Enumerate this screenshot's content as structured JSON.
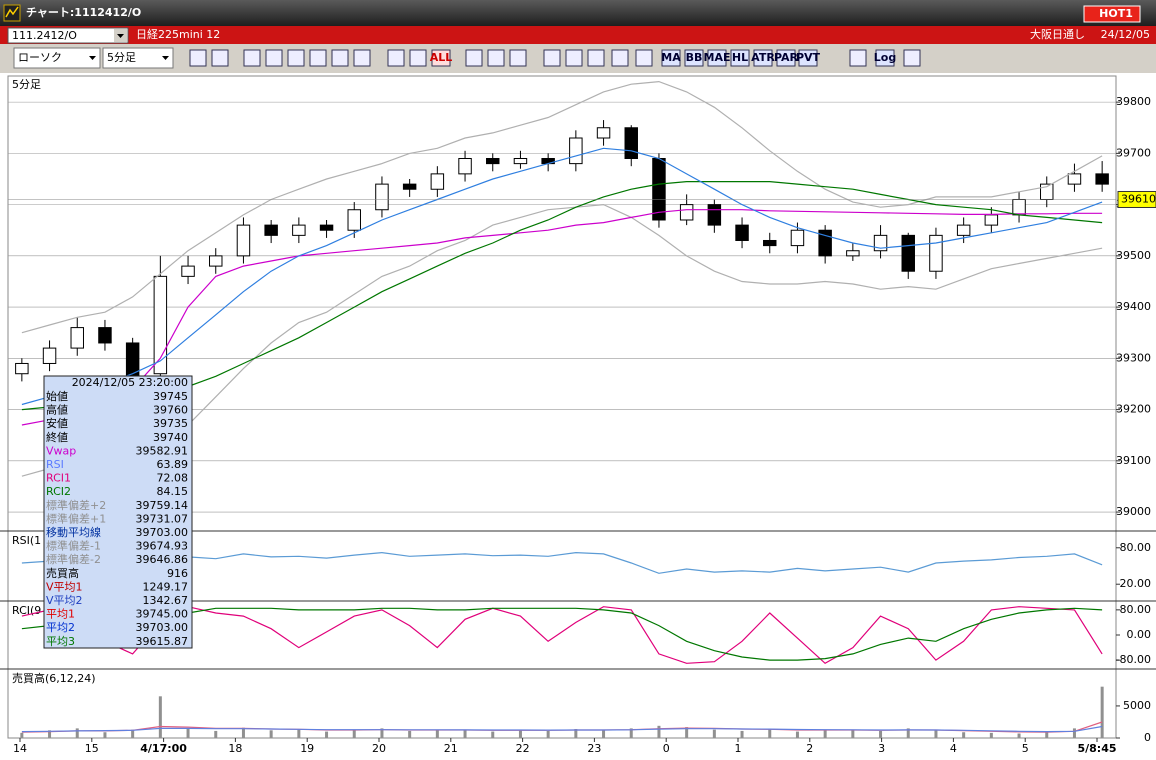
{
  "window": {
    "title": "チャート:1112412/O",
    "hot": "HOT1"
  },
  "header": {
    "code": "111.2412/O",
    "name": "日経225mini 12",
    "market": "大阪日通し",
    "date": "24/12/05"
  },
  "toolbar": {
    "chart_type": "ローソク",
    "interval": "5分足",
    "labels": [
      "ALL",
      "MA",
      "BB",
      "MAE",
      "HL",
      "ATR",
      "PAR",
      "PVT",
      "Log"
    ]
  },
  "time_axis": {
    "labels": [
      "14",
      "15",
      "4/17:00",
      "18",
      "19",
      "20",
      "21",
      "22",
      "23",
      "0",
      "1",
      "2",
      "3",
      "4",
      "5",
      "5/8:45"
    ]
  },
  "chart_data": [
    {
      "type": "candlestick",
      "title": "5分足",
      "ylim": [
        38965,
        39851
      ],
      "yticks": [
        39000,
        39100,
        39200,
        39300,
        39400,
        39500,
        39600,
        39700,
        39800
      ],
      "grid": true,
      "last": 39610,
      "open": [
        39270,
        39290,
        39320,
        39360,
        39330,
        39270,
        39460,
        39480,
        39500,
        39560,
        39540,
        39560,
        39550,
        39590,
        39640,
        39630,
        39660,
        39690,
        39680,
        39690,
        39680,
        39730,
        39750,
        39690,
        39570,
        39600,
        39560,
        39530,
        39520,
        39550,
        39500,
        39510,
        39540,
        39470,
        39540,
        39560,
        39580,
        39610,
        39640,
        39660
      ],
      "high": [
        39300,
        39335,
        39380,
        39375,
        39340,
        39500,
        39500,
        39515,
        39575,
        39570,
        39575,
        39570,
        39605,
        39655,
        39650,
        39675,
        39705,
        39700,
        39705,
        39700,
        39745,
        39765,
        39755,
        39700,
        39620,
        39610,
        39575,
        39545,
        39565,
        39560,
        39525,
        39560,
        39545,
        39555,
        39575,
        39595,
        39625,
        39655,
        39680,
        39685
      ],
      "low": [
        39255,
        39275,
        39305,
        39315,
        39245,
        39255,
        39445,
        39465,
        39485,
        39525,
        39525,
        39535,
        39535,
        39575,
        39615,
        39615,
        39645,
        39665,
        39670,
        39665,
        39665,
        39715,
        39675,
        39555,
        39560,
        39545,
        39515,
        39505,
        39505,
        39485,
        39490,
        39495,
        39455,
        39455,
        39525,
        39545,
        39565,
        39595,
        39625,
        39625
      ],
      "close": [
        39290,
        39320,
        39360,
        39330,
        39260,
        39460,
        39480,
        39500,
        39560,
        39540,
        39560,
        39550,
        39590,
        39640,
        39630,
        39660,
        39690,
        39680,
        39690,
        39680,
        39730,
        39750,
        39690,
        39570,
        39600,
        39560,
        39530,
        39520,
        39550,
        39500,
        39510,
        39540,
        39470,
        39540,
        39560,
        39580,
        39610,
        39640,
        39660,
        39640
      ],
      "series": [
        {
          "color": "#b0b0b0",
          "values": [
            39350,
            39365,
            39380,
            39390,
            39420,
            39465,
            39510,
            39545,
            39580,
            39610,
            39630,
            39650,
            39665,
            39680,
            39700,
            39710,
            39730,
            39740,
            39755,
            39770,
            39795,
            39820,
            39835,
            39840,
            39820,
            39790,
            39750,
            39705,
            39665,
            39630,
            39605,
            39595,
            39600,
            39615,
            39615,
            39615,
            39625,
            39635,
            39665,
            39695
          ]
        },
        {
          "color": "#b0b0b0",
          "values": [
            39070,
            39085,
            39100,
            39110,
            39120,
            39125,
            39170,
            39225,
            39280,
            39330,
            39370,
            39390,
            39425,
            39460,
            39480,
            39510,
            39530,
            39560,
            39575,
            39590,
            39595,
            39600,
            39575,
            39540,
            39500,
            39470,
            39450,
            39445,
            39445,
            39450,
            39445,
            39435,
            39440,
            39435,
            39455,
            39475,
            39485,
            39495,
            39505,
            39515
          ]
        },
        {
          "color": "#cc00cc",
          "values": [
            39170,
            39180,
            39195,
            39210,
            39240,
            39300,
            39400,
            39460,
            39480,
            39490,
            39500,
            39505,
            39510,
            39515,
            39520,
            39525,
            39535,
            39540,
            39545,
            39550,
            39560,
            39565,
            39575,
            39585,
            39590,
            39590,
            39590,
            39588,
            39587,
            39586,
            39585,
            39584,
            39583,
            39582,
            39581,
            39581,
            39582,
            39582,
            39583,
            39583
          ]
        },
        {
          "color": "#007700",
          "values": [
            39200,
            39205,
            39210,
            39215,
            39220,
            39230,
            39245,
            39265,
            39290,
            39315,
            39340,
            39370,
            39400,
            39430,
            39455,
            39480,
            39505,
            39525,
            39550,
            39570,
            39595,
            39615,
            39630,
            39640,
            39645,
            39645,
            39645,
            39645,
            39640,
            39635,
            39630,
            39620,
            39610,
            39600,
            39595,
            39590,
            39580,
            39575,
            39570,
            39565
          ]
        },
        {
          "color": "#2f7fe0",
          "values": [
            39210,
            39225,
            39240,
            39250,
            39270,
            39295,
            39340,
            39385,
            39430,
            39470,
            39500,
            39520,
            39545,
            39570,
            39590,
            39610,
            39630,
            39650,
            39665,
            39680,
            39695,
            39710,
            39705,
            39690,
            39660,
            39630,
            39600,
            39575,
            39555,
            39540,
            39525,
            39515,
            39520,
            39525,
            39535,
            39545,
            39555,
            39565,
            39585,
            39605
          ]
        }
      ]
    },
    {
      "type": "line",
      "title": "RSI(1",
      "ylim": [
        -6,
        106
      ],
      "yticks": [
        {
          "value": 80,
          "label": "80.00"
        },
        {
          "value": 20,
          "label": "20.00"
        }
      ],
      "grid": false,
      "series": [
        {
          "color": "#5b9bd5",
          "values": [
            55,
            58,
            62,
            60,
            50,
            68,
            65,
            62,
            70,
            65,
            66,
            63,
            68,
            72,
            66,
            68,
            70,
            67,
            68,
            66,
            72,
            70,
            55,
            38,
            45,
            40,
            42,
            40,
            46,
            42,
            45,
            48,
            40,
            55,
            58,
            60,
            64,
            66,
            70,
            52
          ]
        }
      ]
    },
    {
      "type": "line",
      "title": "RCI(9",
      "ylim": [
        -105,
        105
      ],
      "yticks": [
        {
          "value": 80,
          "label": "80.00"
        },
        {
          "value": 0,
          "label": "0.00"
        },
        {
          "value": -80,
          "label": "-80.00"
        }
      ],
      "grid": false,
      "series": [
        {
          "color": "#e0007a",
          "values": [
            60,
            80,
            40,
            -20,
            -60,
            40,
            90,
            70,
            60,
            20,
            -40,
            10,
            60,
            80,
            30,
            -40,
            50,
            85,
            60,
            -20,
            40,
            90,
            80,
            -60,
            -90,
            -85,
            -20,
            70,
            -10,
            -90,
            -40,
            60,
            20,
            -80,
            -20,
            80,
            90,
            85,
            80,
            -60
          ]
        },
        {
          "color": "#007700",
          "values": [
            20,
            30,
            40,
            35,
            30,
            50,
            70,
            85,
            85,
            85,
            80,
            80,
            80,
            85,
            85,
            80,
            80,
            85,
            85,
            85,
            85,
            80,
            70,
            30,
            -20,
            -50,
            -70,
            -80,
            -80,
            -75,
            -60,
            -30,
            -10,
            -20,
            20,
            50,
            70,
            80,
            85,
            80
          ]
        }
      ]
    },
    {
      "type": "bar",
      "title": "売買高(6,12,24)",
      "ylim": [
        0,
        10600
      ],
      "yticks": [
        0,
        5000
      ],
      "grid": false,
      "color": "#909090",
      "values": [
        800,
        1200,
        1500,
        900,
        1300,
        6500,
        1400,
        1100,
        1600,
        1200,
        1300,
        1000,
        1200,
        1500,
        1100,
        1300,
        1200,
        1000,
        1300,
        1100,
        1400,
        1200,
        1500,
        1900,
        1700,
        1300,
        1100,
        1400,
        1000,
        1200,
        1300,
        1100,
        1500,
        1200,
        900,
        800,
        700,
        1000,
        1500,
        8000
      ],
      "series": [
        {
          "color": "#e06080",
          "values": [
            900,
            1000,
            1100,
            1100,
            1200,
            1800,
            1700,
            1500,
            1500,
            1400,
            1350,
            1250,
            1250,
            1300,
            1250,
            1250,
            1250,
            1200,
            1200,
            1200,
            1250,
            1250,
            1300,
            1450,
            1550,
            1500,
            1400,
            1350,
            1250,
            1250,
            1250,
            1200,
            1250,
            1250,
            1150,
            1050,
            950,
            900,
            1050,
            2500
          ]
        },
        {
          "color": "#6080e0",
          "values": [
            1000,
            1050,
            1100,
            1150,
            1200,
            1500,
            1500,
            1450,
            1450,
            1400,
            1350,
            1300,
            1300,
            1300,
            1280,
            1280,
            1260,
            1250,
            1240,
            1230,
            1250,
            1250,
            1280,
            1380,
            1450,
            1450,
            1400,
            1380,
            1320,
            1300,
            1280,
            1250,
            1260,
            1250,
            1200,
            1120,
            1050,
            1000,
            1050,
            1800
          ]
        }
      ]
    }
  ],
  "tooltip": {
    "title": "2024/12/05 23:20:00",
    "rows": [
      {
        "label": "始値",
        "value": "39745",
        "color": "#000000"
      },
      {
        "label": "高値",
        "value": "39760",
        "color": "#000000"
      },
      {
        "label": "安値",
        "value": "39735",
        "color": "#000000"
      },
      {
        "label": "終値",
        "value": "39740",
        "color": "#000000"
      },
      {
        "label": "Vwap",
        "value": "39582.91",
        "color": "#cc00cc"
      },
      {
        "label": "RSI",
        "value": "63.89",
        "color": "#5b7bff"
      },
      {
        "label": "RCI1",
        "value": "72.08",
        "color": "#e0007a"
      },
      {
        "label": "RCI2",
        "value": "84.15",
        "color": "#007700"
      },
      {
        "label": "標準偏差+2",
        "value": "39759.14",
        "color": "#909090"
      },
      {
        "label": "標準偏差+1",
        "value": "39731.07",
        "color": "#909090"
      },
      {
        "label": "移動平均線",
        "value": "39703.00",
        "color": "#0030a0"
      },
      {
        "label": "標準偏差-1",
        "value": "39674.93",
        "color": "#909090"
      },
      {
        "label": "標準偏差-2",
        "value": "39646.86",
        "color": "#909090"
      },
      {
        "label": "売買高",
        "value": "916",
        "color": "#000000"
      },
      {
        "label": "V平均1",
        "value": "1249.17",
        "color": "#c00000"
      },
      {
        "label": "V平均2",
        "value": "1342.67",
        "color": "#2040c0"
      },
      {
        "label": "平均1",
        "value": "39745.00",
        "color": "#e00000"
      },
      {
        "label": "平均2",
        "value": "39703.00",
        "color": "#0030d0"
      },
      {
        "label": "平均3",
        "value": "39615.87",
        "color": "#007700"
      }
    ]
  }
}
